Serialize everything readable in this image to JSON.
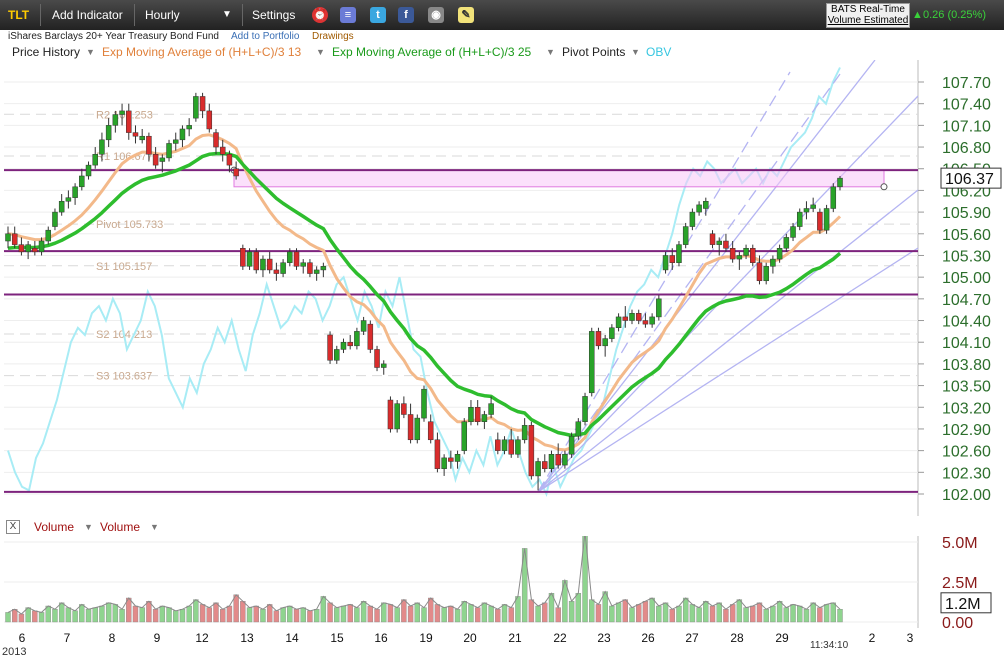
{
  "toolbar": {
    "symbol": "TLT",
    "add_indicator": "Add Indicator",
    "interval": "Hourly",
    "settings": "Settings",
    "realtime_label": "BATS Real-Time",
    "volume_label": "Volume Estimated",
    "change_text": "0.26 (0.25%)"
  },
  "subbar": {
    "name": "iShares Barclays 20+ Year Treasury Bond Fund",
    "add_portfolio": "Add to Portfolio",
    "drawings": "Drawings"
  },
  "legend": {
    "price_history": "Price History",
    "ema13": "Exp Moving Average of (H+L+C)/3 13",
    "ema25": "Exp Moving Average of (H+L+C)/3 25",
    "pivot": "Pivot Points",
    "obv": "OBV"
  },
  "volume_legend": {
    "close": "X",
    "volume1": "Volume",
    "volume2": "Volume"
  },
  "colors": {
    "up": "#29a329",
    "down": "#d92c2c",
    "ema13": "#f3b98a",
    "ema25": "#2ebd2e",
    "obv": "#a8ecf5",
    "pivot_line": "#7d237d",
    "zone": "#f7c6f7",
    "fan": "#b4b4f2",
    "axis_text": "#2c6e2c"
  },
  "chart_data": {
    "type": "candlestick",
    "title": "TLT",
    "y_ticks": [
      "107.70",
      "107.40",
      "107.10",
      "106.80",
      "106.50",
      "106.20",
      "105.90",
      "105.60",
      "105.30",
      "105.00",
      "104.70",
      "104.40",
      "104.10",
      "103.80",
      "103.50",
      "103.20",
      "102.90",
      "102.60",
      "102.30",
      "102.00"
    ],
    "ylim": [
      102.0,
      107.7
    ],
    "last_price": "106.37",
    "x_labels": [
      "6",
      "7",
      "8",
      "9",
      "12",
      "13",
      "14",
      "15",
      "16",
      "19",
      "20",
      "21",
      "22",
      "23",
      "26",
      "27",
      "28",
      "29",
      "",
      "2",
      "3"
    ],
    "year_label": "2013",
    "time_label": "11:34:10",
    "pivot_levels": [
      {
        "name": "R2",
        "label": "R2 107.253",
        "value": 107.253
      },
      {
        "name": "R1",
        "label": "R1 106.677",
        "value": 106.677
      },
      {
        "name": "Pivot",
        "label": "Pivot 105.733",
        "value": 105.733
      },
      {
        "name": "S1",
        "label": "S1 105.157",
        "value": 105.157
      },
      {
        "name": "S2",
        "label": "S2 104.213",
        "value": 104.213
      },
      {
        "name": "S3",
        "label": "S3 103.637",
        "value": 103.637
      }
    ],
    "horizontal_lines": [
      106.48,
      105.36,
      104.76,
      102.03
    ],
    "ohlc": [
      [
        105.5,
        105.7,
        105.4,
        105.6
      ],
      [
        105.6,
        105.7,
        105.4,
        105.45
      ],
      [
        105.45,
        105.55,
        105.3,
        105.35
      ],
      [
        105.35,
        105.5,
        105.25,
        105.45
      ],
      [
        105.4,
        105.5,
        105.3,
        105.35
      ],
      [
        105.35,
        105.55,
        105.3,
        105.5
      ],
      [
        105.5,
        105.7,
        105.45,
        105.65
      ],
      [
        105.7,
        105.95,
        105.65,
        105.9
      ],
      [
        105.9,
        106.15,
        105.85,
        106.05
      ],
      [
        106.05,
        106.2,
        105.95,
        106.1
      ],
      [
        106.1,
        106.3,
        106.0,
        106.25
      ],
      [
        106.25,
        106.5,
        106.2,
        106.4
      ],
      [
        106.4,
        106.6,
        106.35,
        106.55
      ],
      [
        106.55,
        106.8,
        106.5,
        106.7
      ],
      [
        106.7,
        107.0,
        106.6,
        106.9
      ],
      [
        106.9,
        107.2,
        106.8,
        107.1
      ],
      [
        107.1,
        107.3,
        107.0,
        107.25
      ],
      [
        107.25,
        107.4,
        107.1,
        107.3
      ],
      [
        107.3,
        107.4,
        106.9,
        107.0
      ],
      [
        107.0,
        107.1,
        106.85,
        106.95
      ],
      [
        106.9,
        107.05,
        106.85,
        106.95
      ],
      [
        106.95,
        107.0,
        106.6,
        106.7
      ],
      [
        106.7,
        106.8,
        106.5,
        106.55
      ],
      [
        106.6,
        106.7,
        106.45,
        106.65
      ],
      [
        106.65,
        106.9,
        106.6,
        106.85
      ],
      [
        106.85,
        107.0,
        106.75,
        106.9
      ],
      [
        106.9,
        107.1,
        106.8,
        107.05
      ],
      [
        107.05,
        107.2,
        106.95,
        107.1
      ],
      [
        107.2,
        107.55,
        107.15,
        107.5
      ],
      [
        107.5,
        107.55,
        107.2,
        107.3
      ],
      [
        107.3,
        107.4,
        107.0,
        107.05
      ],
      [
        107.0,
        107.05,
        106.7,
        106.8
      ],
      [
        106.8,
        106.9,
        106.6,
        106.7
      ],
      [
        106.7,
        106.75,
        106.45,
        106.55
      ],
      [
        106.5,
        106.6,
        106.35,
        106.4
      ],
      [
        105.4,
        105.45,
        105.1,
        105.15
      ],
      [
        105.15,
        105.4,
        105.1,
        105.35
      ],
      [
        105.35,
        105.4,
        105.05,
        105.1
      ],
      [
        105.1,
        105.3,
        105.0,
        105.25
      ],
      [
        105.25,
        105.35,
        105.05,
        105.1
      ],
      [
        105.1,
        105.2,
        104.95,
        105.05
      ],
      [
        105.05,
        105.25,
        105.0,
        105.2
      ],
      [
        105.2,
        105.4,
        105.15,
        105.35
      ],
      [
        105.35,
        105.4,
        105.1,
        105.15
      ],
      [
        105.15,
        105.25,
        105.05,
        105.2
      ],
      [
        105.2,
        105.25,
        105.0,
        105.05
      ],
      [
        105.05,
        105.15,
        104.95,
        105.1
      ],
      [
        105.1,
        105.2,
        105.0,
        105.15
      ],
      [
        104.2,
        104.25,
        103.8,
        103.85
      ],
      [
        103.85,
        104.05,
        103.8,
        104.0
      ],
      [
        104.0,
        104.15,
        103.95,
        104.1
      ],
      [
        104.1,
        104.2,
        104.0,
        104.05
      ],
      [
        104.05,
        104.3,
        104.0,
        104.25
      ],
      [
        104.25,
        104.45,
        104.2,
        104.4
      ],
      [
        104.35,
        104.4,
        103.95,
        104.0
      ],
      [
        104.0,
        104.05,
        103.7,
        103.75
      ],
      [
        103.75,
        103.85,
        103.65,
        103.8
      ],
      [
        103.3,
        103.35,
        102.85,
        102.9
      ],
      [
        102.9,
        103.3,
        102.85,
        103.25
      ],
      [
        103.25,
        103.35,
        103.05,
        103.1
      ],
      [
        103.1,
        103.25,
        102.7,
        102.75
      ],
      [
        102.75,
        103.1,
        102.7,
        103.05
      ],
      [
        103.05,
        103.5,
        103.0,
        103.45
      ],
      [
        103.0,
        103.1,
        102.7,
        102.75
      ],
      [
        102.75,
        102.85,
        102.3,
        102.35
      ],
      [
        102.35,
        102.55,
        102.25,
        102.5
      ],
      [
        102.5,
        102.6,
        102.35,
        102.45
      ],
      [
        102.45,
        102.6,
        102.35,
        102.55
      ],
      [
        102.6,
        103.05,
        102.55,
        103.0
      ],
      [
        103.0,
        103.3,
        102.95,
        103.2
      ],
      [
        103.2,
        103.3,
        102.95,
        103.0
      ],
      [
        103.0,
        103.15,
        102.9,
        103.1
      ],
      [
        103.1,
        103.35,
        103.05,
        103.25
      ],
      [
        102.75,
        102.85,
        102.55,
        102.6
      ],
      [
        102.6,
        102.8,
        102.55,
        102.75
      ],
      [
        102.75,
        102.9,
        102.5,
        102.55
      ],
      [
        102.55,
        102.8,
        102.5,
        102.75
      ],
      [
        102.75,
        103.05,
        102.7,
        102.95
      ],
      [
        102.95,
        103.0,
        102.2,
        102.25
      ],
      [
        102.25,
        102.5,
        102.05,
        102.45
      ],
      [
        102.45,
        102.55,
        102.3,
        102.35
      ],
      [
        102.35,
        102.6,
        102.3,
        102.55
      ],
      [
        102.55,
        102.7,
        102.35,
        102.4
      ],
      [
        102.4,
        102.6,
        102.35,
        102.55
      ],
      [
        102.55,
        102.85,
        102.5,
        102.8
      ],
      [
        102.8,
        103.05,
        102.75,
        103.0
      ],
      [
        103.0,
        103.4,
        102.95,
        103.35
      ],
      [
        103.4,
        104.3,
        103.35,
        104.25
      ],
      [
        104.25,
        104.3,
        104.0,
        104.05
      ],
      [
        104.05,
        104.2,
        103.9,
        104.15
      ],
      [
        104.15,
        104.35,
        104.1,
        104.3
      ],
      [
        104.3,
        104.5,
        104.25,
        104.45
      ],
      [
        104.45,
        104.6,
        104.3,
        104.4
      ],
      [
        104.4,
        104.55,
        104.35,
        104.5
      ],
      [
        104.5,
        104.55,
        104.35,
        104.4
      ],
      [
        104.4,
        104.5,
        104.3,
        104.35
      ],
      [
        104.35,
        104.5,
        104.3,
        104.45
      ],
      [
        104.45,
        104.75,
        104.4,
        104.7
      ],
      [
        105.1,
        105.35,
        105.05,
        105.3
      ],
      [
        105.3,
        105.4,
        105.1,
        105.2
      ],
      [
        105.2,
        105.5,
        105.15,
        105.45
      ],
      [
        105.45,
        105.75,
        105.4,
        105.7
      ],
      [
        105.7,
        105.95,
        105.65,
        105.9
      ],
      [
        105.9,
        106.05,
        105.85,
        106.0
      ],
      [
        105.95,
        106.1,
        105.85,
        106.05
      ],
      [
        105.6,
        105.65,
        105.4,
        105.45
      ],
      [
        105.45,
        105.55,
        105.3,
        105.5
      ],
      [
        105.5,
        105.6,
        105.35,
        105.4
      ],
      [
        105.4,
        105.5,
        105.2,
        105.25
      ],
      [
        105.25,
        105.35,
        105.1,
        105.3
      ],
      [
        105.3,
        105.45,
        105.25,
        105.4
      ],
      [
        105.4,
        105.45,
        105.15,
        105.2
      ],
      [
        105.2,
        105.3,
        104.9,
        104.95
      ],
      [
        104.95,
        105.2,
        104.9,
        105.15
      ],
      [
        105.15,
        105.3,
        105.05,
        105.25
      ],
      [
        105.25,
        105.45,
        105.2,
        105.4
      ],
      [
        105.4,
        105.6,
        105.35,
        105.55
      ],
      [
        105.55,
        105.75,
        105.5,
        105.7
      ],
      [
        105.7,
        105.95,
        105.65,
        105.9
      ],
      [
        105.9,
        106.05,
        105.8,
        105.95
      ],
      [
        105.95,
        106.1,
        105.9,
        106.0
      ],
      [
        105.9,
        105.95,
        105.6,
        105.65
      ],
      [
        105.65,
        106.0,
        105.6,
        105.95
      ],
      [
        105.95,
        106.3,
        105.9,
        106.25
      ],
      [
        106.25,
        106.4,
        106.2,
        106.37
      ]
    ],
    "ema13": [
      105.6,
      105.59,
      105.56,
      105.54,
      105.52,
      105.52,
      105.54,
      105.59,
      105.65,
      105.71,
      105.78,
      105.86,
      105.96,
      106.07,
      106.19,
      106.32,
      106.45,
      106.57,
      106.64,
      106.69,
      106.73,
      106.73,
      106.71,
      106.7,
      106.72,
      106.74,
      106.78,
      106.82,
      106.91,
      106.96,
      106.97,
      106.94,
      106.9,
      106.85,
      106.78,
      106.56,
      106.37,
      106.19,
      106.05,
      105.91,
      105.79,
      105.7,
      105.65,
      105.58,
      105.53,
      105.46,
      105.41,
      105.37,
      105.16,
      104.98,
      104.85,
      104.73,
      104.66,
      104.62,
      104.53,
      104.41,
      104.32,
      104.1,
      103.97,
      103.85,
      103.69,
      103.6,
      103.58,
      103.46,
      103.3,
      103.19,
      103.08,
      103.0,
      103.0,
      103.02,
      103.02,
      103.03,
      103.06,
      102.99,
      102.96,
      102.9,
      102.88,
      102.89,
      102.79,
      102.74,
      102.68,
      102.66,
      102.62,
      102.61,
      102.64,
      102.69,
      102.78,
      102.99,
      103.15,
      103.29,
      103.43,
      103.58,
      103.7,
      103.82,
      103.9,
      103.96,
      104.03,
      104.12,
      104.29,
      104.42,
      104.57,
      104.73,
      104.89,
      105.05,
      105.18,
      105.22,
      105.26,
      105.28,
      105.28,
      105.28,
      105.3,
      105.28,
      105.23,
      105.22,
      105.22,
      105.25,
      105.31,
      105.38,
      105.48,
      105.55,
      105.62,
      105.62,
      105.67,
      105.75,
      105.84
    ],
    "ema25": [
      105.4,
      105.41,
      105.41,
      105.41,
      105.41,
      105.42,
      105.44,
      105.47,
      105.51,
      105.56,
      105.61,
      105.67,
      105.74,
      105.81,
      105.89,
      105.98,
      106.07,
      106.16,
      106.23,
      106.29,
      106.34,
      106.37,
      106.39,
      106.41,
      106.44,
      106.47,
      106.51,
      106.55,
      106.61,
      106.67,
      106.7,
      106.71,
      106.71,
      106.7,
      106.67,
      106.56,
      106.46,
      106.36,
      106.27,
      106.18,
      106.09,
      106.02,
      105.96,
      105.9,
      105.84,
      105.78,
      105.72,
      105.67,
      105.52,
      105.39,
      105.27,
      105.15,
      105.05,
      104.97,
      104.87,
      104.76,
      104.67,
      104.52,
      104.4,
      104.29,
      104.15,
      104.05,
      103.99,
      103.89,
      103.77,
      103.67,
      103.57,
      103.49,
      103.45,
      103.42,
      103.38,
      103.36,
      103.35,
      103.29,
      103.24,
      103.18,
      103.14,
      103.12,
      103.03,
      102.98,
      102.93,
      102.89,
      102.85,
      102.83,
      102.81,
      102.82,
      102.84,
      102.95,
      103.03,
      103.12,
      103.21,
      103.3,
      103.39,
      103.48,
      103.55,
      103.61,
      103.67,
      103.74,
      103.86,
      103.96,
      104.07,
      104.19,
      104.31,
      104.43,
      104.53,
      104.59,
      104.64,
      104.67,
      104.69,
      104.71,
      104.74,
      104.74,
      104.72,
      104.73,
      104.76,
      104.79,
      104.84,
      104.9,
      104.97,
      105.04,
      105.1,
      105.13,
      105.19,
      105.25,
      105.33
    ],
    "obv_series_note": "",
    "volume_axis": [
      "5.0M",
      "2.5M",
      "0.00"
    ],
    "last_volume": "1.2M"
  }
}
